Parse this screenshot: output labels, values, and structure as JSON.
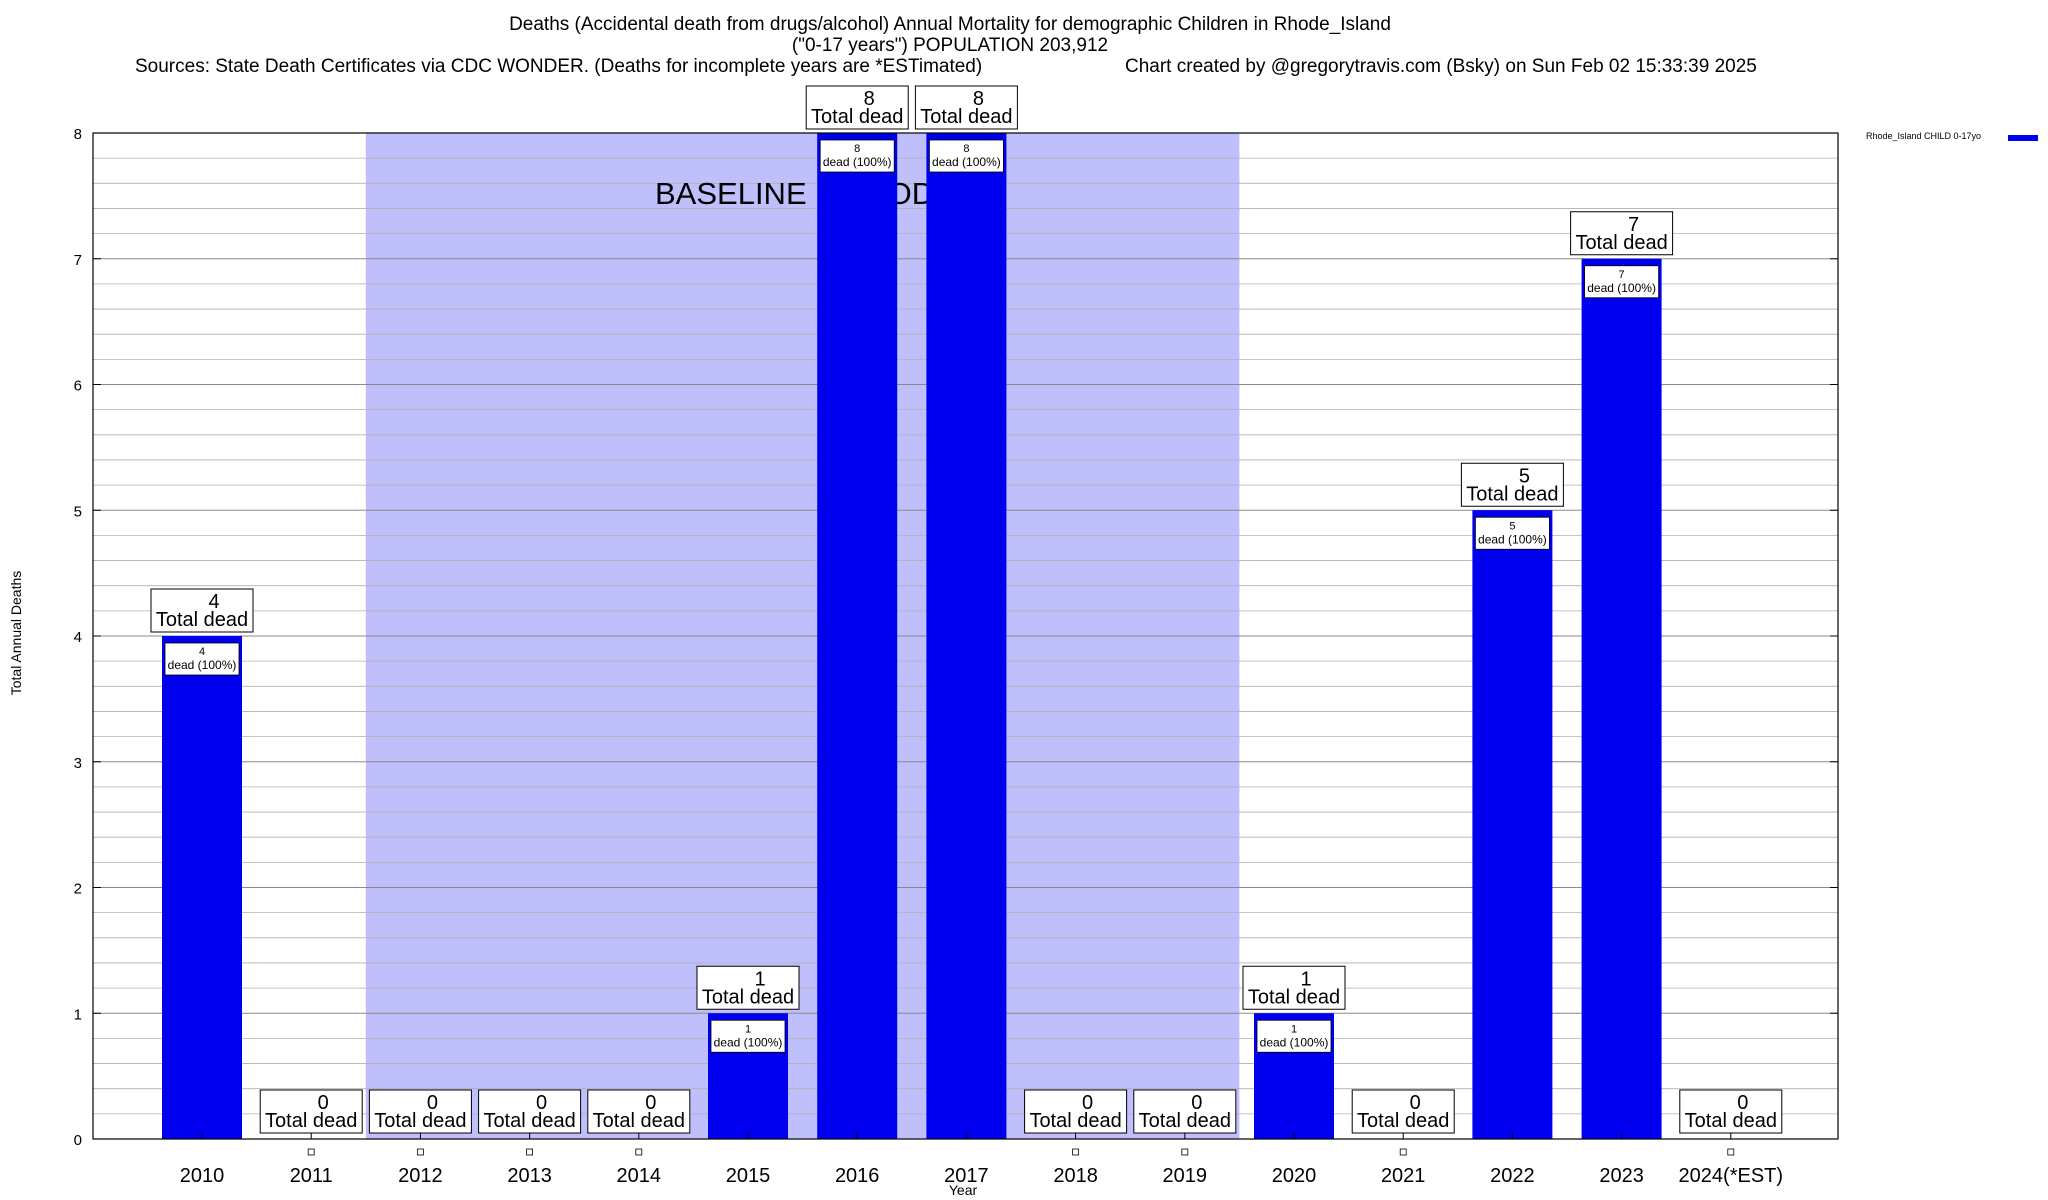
{
  "title": {
    "line1": "Deaths (Accidental death from drugs/alcohol) Annual Mortality for demographic Children in Rhode_Island",
    "line2": "(\"0-17 years\") POPULATION 203,912",
    "sources": "Sources: State Death Certificates via CDC WONDER. (Deaths for incomplete years are *ESTimated)",
    "credit": "Chart created by @gregorytravis.com (Bsky) on Sun Feb 02 15:33:39 2025"
  },
  "chart_data": {
    "type": "bar",
    "categories": [
      "2010",
      "2011",
      "2012",
      "2013",
      "2014",
      "2015",
      "2016",
      "2017",
      "2018",
      "2019",
      "2020",
      "2021",
      "2022",
      "2023",
      "2024(*EST)"
    ],
    "series": [
      {
        "name": "Rhode_Island CHILD 0-17yo",
        "values": [
          4,
          0,
          0,
          0,
          0,
          1,
          8,
          8,
          0,
          0,
          1,
          0,
          5,
          7,
          0
        ]
      }
    ],
    "ylim": [
      0,
      8
    ],
    "yticks": [
      0,
      1,
      2,
      3,
      4,
      5,
      6,
      7,
      8
    ],
    "xlabel": "Year",
    "ylabel": "Total Annual Deaths",
    "baseline_period": {
      "label": "BASELINE PERIOD",
      "from": "2012",
      "to": "2019"
    },
    "total_label": "Total dead",
    "inner_label_suffix": "dead (100%)",
    "legend_position": "top-right",
    "grid": true,
    "colors": {
      "bar": "#0000ee",
      "baseline": "#bfbffb",
      "grid": "#b0b0b0"
    }
  }
}
